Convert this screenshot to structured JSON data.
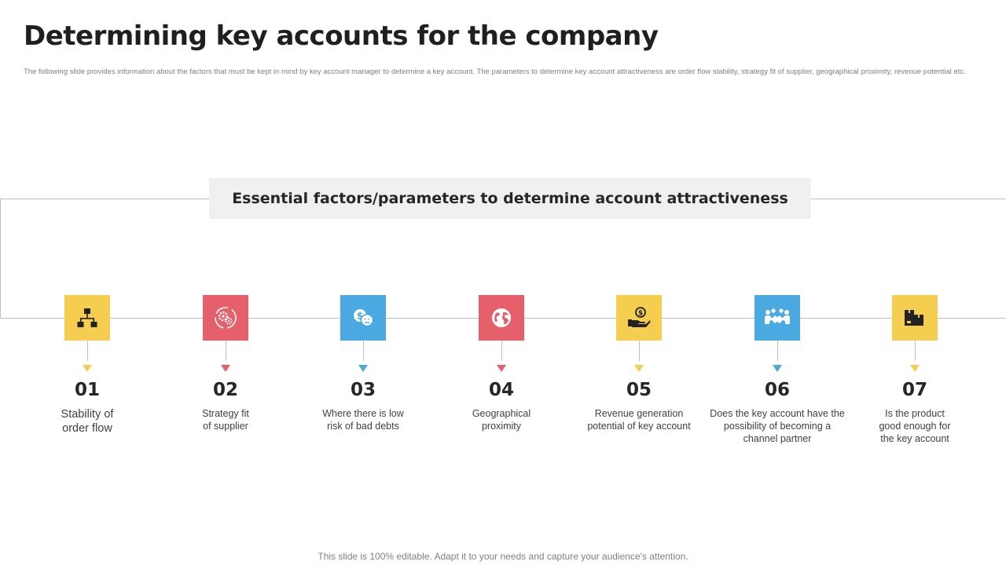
{
  "title": "Determining key accounts for the company",
  "subtitle": "The following slide provides information about the factors that must be kept in mind by key account manager to determine a key account. The parameters to determine key account attractiveness are order flow stability, strategy fit of supplier, geographical proximity, revenue potential etc.",
  "header": "Essential factors/parameters  to determine account attractiveness",
  "colors": {
    "yellow": "#f5cd4f",
    "red": "#e5606b",
    "blue": "#4aa9e0",
    "line": "#bfbfbf"
  },
  "steps": [
    {
      "number": "01",
      "text": "Stability of\norder flow",
      "icon": "hierarchy-icon",
      "color": "#f5cd4f"
    },
    {
      "number": "02",
      "text": "Strategy fit\nof supplier",
      "icon": "gears-icon",
      "color": "#e5606b"
    },
    {
      "number": "03",
      "text": "Where there is low\nrisk of bad debts",
      "icon": "coins-worry-icon",
      "color": "#4aa9e0"
    },
    {
      "number": "04",
      "text": "Geographical\nproximity",
      "icon": "globe-icon",
      "color": "#e5606b"
    },
    {
      "number": "05",
      "text": "Revenue  generation\npotential of key account",
      "icon": "hand-coin-icon",
      "color": "#f5cd4f"
    },
    {
      "number": "06",
      "text": "Does the key account have the\npossibility of becoming a\nchannel partner",
      "icon": "handshake-group-icon",
      "color": "#4aa9e0"
    },
    {
      "number": "07",
      "text": "Is the product\ngood enough for\nthe key account",
      "icon": "product-boxes-icon",
      "color": "#f5cd4f"
    }
  ],
  "footer": "This slide is 100% editable. Adapt it to your needs and capture your audience's attention."
}
